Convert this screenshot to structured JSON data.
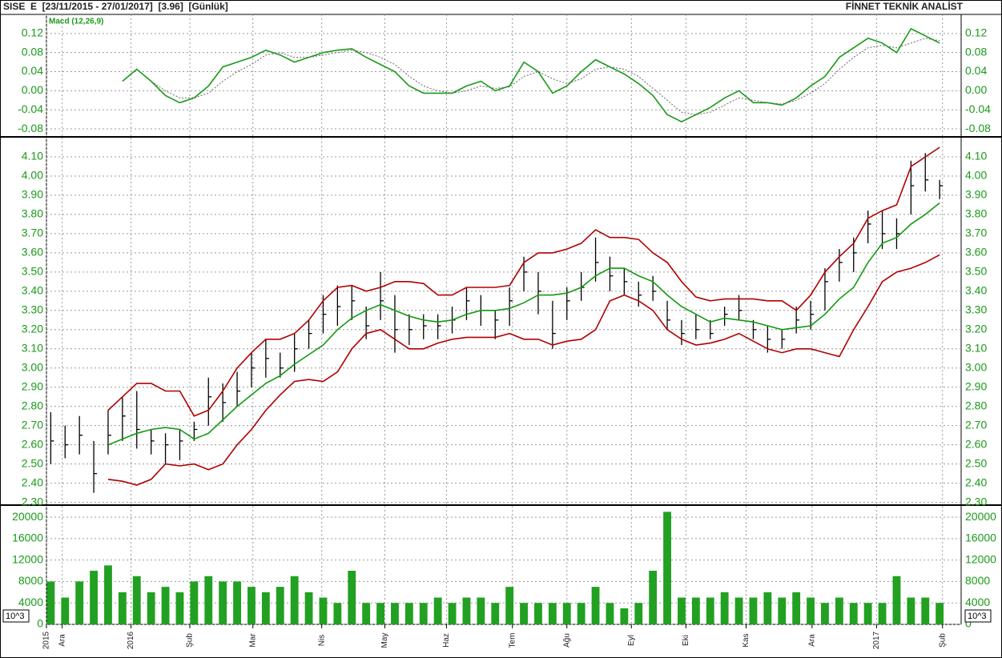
{
  "header": {
    "title": "SISE  E  [23/11/2015 - 27/01/2017]  [3.96]  [Günlük]",
    "brand": "FİNNET TEKNİK ANALİST"
  },
  "chart_data": [
    {
      "type": "line",
      "label": "Macd (12,26,9)",
      "ylim": [
        -0.095,
        0.16
      ],
      "yticks": [
        -0.08,
        -0.04,
        {
          "value": 0,
          "label": "0.00"
        },
        0.04,
        0.08,
        0.12
      ],
      "grid": true,
      "series": [
        {
          "color": "#1a9a1a",
          "style": "solid",
          "values": [
            null,
            null,
            null,
            null,
            null,
            0.02,
            0.045,
            0.02,
            -0.01,
            -0.025,
            -0.015,
            0.01,
            0.05,
            0.06,
            0.07,
            0.085,
            0.075,
            0.06,
            0.07,
            0.08,
            0.085,
            0.088,
            0.07,
            0.055,
            0.04,
            0.01,
            -0.005,
            -0.005,
            -0.005,
            0.01,
            0.02,
            0,
            0.01,
            0.06,
            0.04,
            -0.005,
            0.01,
            0.04,
            0.065,
            0.05,
            0.035,
            0.015,
            -0.01,
            -0.05,
            -0.065,
            -0.05,
            -0.035,
            -0.015,
            0,
            -0.025,
            -0.025,
            -0.03,
            -0.015,
            0.01,
            0.03,
            0.07,
            0.09,
            0.11,
            0.1,
            0.08,
            0.13,
            0.115,
            0.1
          ]
        },
        {
          "color": "#666666",
          "style": "dotted",
          "values": [
            null,
            null,
            null,
            null,
            null,
            null,
            null,
            0.02,
            0,
            -0.015,
            -0.015,
            -0.005,
            0.02,
            0.04,
            0.055,
            0.075,
            0.08,
            0.07,
            0.07,
            0.075,
            0.08,
            0.085,
            0.08,
            0.07,
            0.055,
            0.03,
            0.01,
            0,
            -0.005,
            0,
            0.01,
            0.005,
            0.008,
            0.03,
            0.04,
            0.025,
            0.015,
            0.025,
            0.045,
            0.05,
            0.045,
            0.03,
            0.005,
            -0.02,
            -0.045,
            -0.05,
            -0.045,
            -0.03,
            -0.015,
            -0.02,
            -0.025,
            -0.028,
            -0.02,
            -0.005,
            0.015,
            0.045,
            0.07,
            0.09,
            0.095,
            0.09,
            0.1,
            0.11,
            0.105
          ]
        }
      ]
    },
    {
      "type": "ohlc",
      "color": "#000000",
      "ylim": [
        2.29,
        4.2
      ],
      "grid": true,
      "yticks": [
        {
          "value": 2.3,
          "label": "2.30"
        },
        {
          "value": 2.4,
          "label": "2.40"
        },
        {
          "value": 2.5,
          "label": "2.50"
        },
        {
          "value": 2.6,
          "label": "2.60"
        },
        {
          "value": 2.7,
          "label": "2.70"
        },
        {
          "value": 2.8,
          "label": "2.80"
        },
        {
          "value": 2.9,
          "label": "2.90"
        },
        {
          "value": 3.0,
          "label": "3.00"
        },
        {
          "value": 3.1,
          "label": "3.10"
        },
        {
          "value": 3.2,
          "label": "3.20"
        },
        {
          "value": 3.3,
          "label": "3.30"
        },
        {
          "value": 3.4,
          "label": "3.40"
        },
        {
          "value": 3.5,
          "label": "3.50"
        },
        {
          "value": 3.6,
          "label": "3.60"
        },
        {
          "value": 3.7,
          "label": "3.70"
        },
        {
          "value": 3.8,
          "label": "3.80"
        },
        {
          "value": 3.9,
          "label": "3.90"
        },
        {
          "value": 4.0,
          "label": "4.00"
        },
        {
          "value": 4.1,
          "label": "4.10"
        }
      ],
      "high": [
        2.77,
        2.7,
        2.75,
        2.62,
        2.78,
        2.85,
        2.88,
        2.68,
        2.66,
        2.68,
        2.72,
        2.95,
        2.92,
        2.98,
        3.08,
        3.15,
        3.08,
        3.18,
        3.25,
        3.38,
        3.43,
        3.43,
        3.32,
        3.5,
        3.38,
        3.28,
        3.28,
        3.28,
        3.32,
        3.42,
        3.38,
        3.3,
        3.42,
        3.58,
        3.5,
        3.35,
        3.42,
        3.5,
        3.68,
        3.58,
        3.52,
        3.45,
        3.48,
        3.35,
        3.25,
        3.28,
        3.25,
        3.32,
        3.38,
        3.25,
        3.22,
        3.2,
        3.32,
        3.35,
        3.52,
        3.62,
        3.68,
        3.82,
        3.82,
        3.78,
        4.08,
        4.12,
        3.98
      ],
      "low": [
        2.5,
        2.53,
        2.55,
        2.35,
        2.55,
        2.62,
        2.58,
        2.55,
        2.5,
        2.52,
        2.62,
        2.7,
        2.72,
        2.8,
        2.9,
        2.95,
        2.95,
        2.98,
        3.1,
        3.18,
        3.22,
        3.25,
        3.15,
        3.25,
        3.08,
        3.12,
        3.15,
        3.15,
        3.18,
        3.25,
        3.22,
        3.15,
        3.22,
        3.4,
        3.28,
        3.1,
        3.25,
        3.35,
        3.45,
        3.4,
        3.38,
        3.32,
        3.35,
        3.2,
        3.12,
        3.15,
        3.15,
        3.22,
        3.25,
        3.15,
        3.08,
        3.1,
        3.18,
        3.2,
        3.3,
        3.45,
        3.5,
        3.65,
        3.62,
        3.62,
        3.8,
        3.92,
        3.88
      ],
      "close": [
        2.62,
        2.6,
        2.65,
        2.45,
        2.65,
        2.75,
        2.68,
        2.62,
        2.6,
        2.62,
        2.68,
        2.85,
        2.82,
        2.88,
        3.0,
        3.05,
        3.0,
        3.1,
        3.18,
        3.28,
        3.32,
        3.35,
        3.22,
        3.35,
        3.2,
        3.2,
        3.22,
        3.22,
        3.25,
        3.35,
        3.3,
        3.25,
        3.35,
        3.5,
        3.4,
        3.18,
        3.35,
        3.42,
        3.55,
        3.48,
        3.45,
        3.38,
        3.4,
        3.25,
        3.18,
        3.2,
        3.18,
        3.28,
        3.3,
        3.2,
        3.15,
        3.15,
        3.25,
        3.28,
        3.45,
        3.55,
        3.6,
        3.75,
        3.7,
        3.7,
        3.95,
        3.98,
        3.95
      ],
      "series": [
        {
          "color": "#b00000",
          "values": [
            null,
            null,
            null,
            null,
            2.78,
            2.85,
            2.92,
            2.92,
            2.88,
            2.88,
            2.75,
            2.78,
            2.88,
            3.0,
            3.08,
            3.15,
            3.15,
            3.18,
            3.25,
            3.35,
            3.42,
            3.43,
            3.4,
            3.42,
            3.45,
            3.45,
            3.44,
            3.38,
            3.38,
            3.42,
            3.42,
            3.42,
            3.43,
            3.55,
            3.6,
            3.6,
            3.62,
            3.65,
            3.72,
            3.68,
            3.68,
            3.67,
            3.6,
            3.55,
            3.45,
            3.37,
            3.35,
            3.36,
            3.36,
            3.36,
            3.35,
            3.35,
            3.3,
            3.38,
            3.5,
            3.58,
            3.65,
            3.78,
            3.82,
            3.85,
            4.05,
            4.1,
            4.15
          ]
        },
        {
          "color": "#119911",
          "values": [
            null,
            null,
            null,
            null,
            2.6,
            2.63,
            2.66,
            2.68,
            2.69,
            2.68,
            2.63,
            2.66,
            2.73,
            2.8,
            2.86,
            2.92,
            2.96,
            3.02,
            3.07,
            3.12,
            3.2,
            3.26,
            3.3,
            3.33,
            3.3,
            3.27,
            3.25,
            3.24,
            3.25,
            3.28,
            3.3,
            3.3,
            3.31,
            3.34,
            3.38,
            3.38,
            3.39,
            3.42,
            3.48,
            3.52,
            3.52,
            3.48,
            3.45,
            3.38,
            3.32,
            3.28,
            3.24,
            3.26,
            3.25,
            3.24,
            3.22,
            3.2,
            3.21,
            3.22,
            3.28,
            3.36,
            3.42,
            3.55,
            3.65,
            3.68,
            3.75,
            3.8,
            3.86
          ]
        },
        {
          "color": "#b00000",
          "values": [
            null,
            null,
            null,
            null,
            2.42,
            2.41,
            2.39,
            2.42,
            2.5,
            2.49,
            2.5,
            2.47,
            2.5,
            2.6,
            2.68,
            2.78,
            2.86,
            2.93,
            2.94,
            2.93,
            2.98,
            3.1,
            3.18,
            3.2,
            3.15,
            3.1,
            3.1,
            3.13,
            3.15,
            3.16,
            3.16,
            3.16,
            3.18,
            3.15,
            3.15,
            3.12,
            3.14,
            3.15,
            3.2,
            3.35,
            3.38,
            3.35,
            3.3,
            3.2,
            3.15,
            3.12,
            3.13,
            3.15,
            3.18,
            3.14,
            3.1,
            3.08,
            3.1,
            3.1,
            3.08,
            3.06,
            3.2,
            3.32,
            3.45,
            3.5,
            3.52,
            3.55,
            3.59
          ]
        }
      ]
    },
    {
      "type": "bar",
      "color": "#22a022",
      "unit": "10^3",
      "ylim": [
        0,
        22100
      ],
      "grid": true,
      "yticks": [
        0,
        4000,
        8000,
        12000,
        16000,
        20000
      ],
      "values": [
        8000,
        5000,
        8000,
        10000,
        11000,
        6000,
        9000,
        6000,
        7000,
        6000,
        8000,
        9000,
        8000,
        8000,
        7000,
        6000,
        7000,
        9000,
        6000,
        5000,
        4000,
        10000,
        4000,
        4000,
        4000,
        4000,
        4000,
        5000,
        4000,
        5000,
        5000,
        4000,
        7000,
        4000,
        4000,
        4000,
        4000,
        4000,
        7000,
        4000,
        3000,
        4000,
        10000,
        21000,
        5000,
        5000,
        5000,
        6000,
        5000,
        5000,
        6000,
        5000,
        6000,
        5000,
        4000,
        5000,
        4000,
        4000,
        4000,
        9000,
        5000,
        5000,
        4000
      ],
      "xlim": [
        -0.3,
        63.5
      ],
      "xticks": [
        {
          "value": -0.3,
          "label": "2015"
        },
        {
          "value": 0.8,
          "label": "Ara"
        },
        {
          "value": 5.6,
          "label": "2016"
        },
        {
          "value": 9.7,
          "label": "Şub"
        },
        {
          "value": 14.1,
          "label": "Mar"
        },
        {
          "value": 18.9,
          "label": "Nis"
        },
        {
          "value": 23.3,
          "label": "May"
        },
        {
          "value": 27.6,
          "label": "Haz"
        },
        {
          "value": 32.2,
          "label": "Tem"
        },
        {
          "value": 36,
          "label": "Ağu"
        },
        {
          "value": 40.5,
          "label": "Eyl"
        },
        {
          "value": 44.3,
          "label": "Eki"
        },
        {
          "value": 48.5,
          "label": "Kas"
        },
        {
          "value": 53.1,
          "label": "Ara"
        },
        {
          "value": 57.6,
          "label": "2017"
        },
        {
          "value": 62.2,
          "label": "Şub"
        }
      ]
    }
  ]
}
